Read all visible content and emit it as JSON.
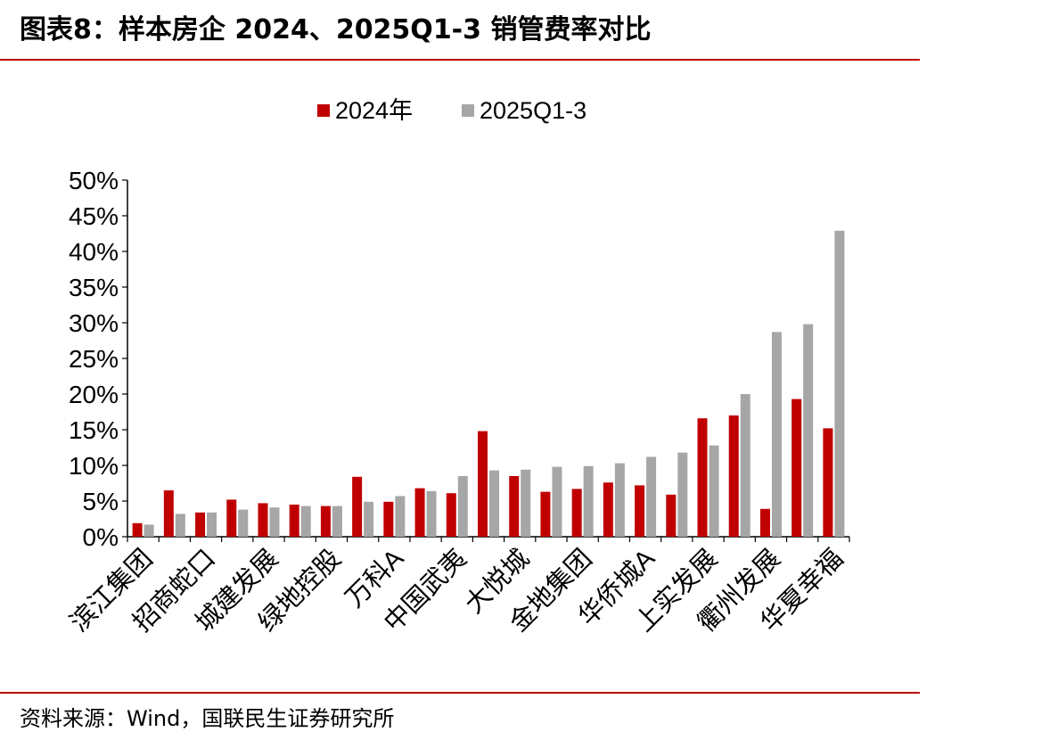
{
  "header": {
    "title": "图表8：样本房企 2024、2025Q1-3 销管费率对比"
  },
  "footer": {
    "source": "资料来源：Wind，国联民生证券研究所"
  },
  "colors": {
    "series_2024": "#c00000",
    "series_2025": "#a6a6a6",
    "rule": "#c00000"
  },
  "chart_data": {
    "type": "bar",
    "categories": [
      "滨江集团",
      "招商蛇口",
      "城建发展",
      "绿地控股",
      "万科A",
      "中国武夷",
      "大悦城",
      "金地集团",
      "华侨城A",
      "上实发展",
      "衢州发展",
      "华夏幸福"
    ],
    "category_labels": [
      "滨江集团",
      "招商蛇口",
      "城建发展",
      "绿地控股",
      "万科A",
      "中国武夷",
      "大悦城",
      "金地集团",
      "华侨城A",
      "上实发展",
      "衢州发展",
      "华夏幸福"
    ],
    "bar_groups": [
      [
        1.9,
        6.5,
        1.7,
        3.2
      ],
      [
        3.4,
        5.2,
        3.4,
        3.8
      ],
      [
        4.7,
        4.5,
        4.1,
        4.3
      ],
      [
        4.3,
        8.4,
        4.3,
        4.9
      ],
      [
        4.9,
        6.8,
        5.7,
        6.4
      ],
      [
        6.1,
        14.8,
        8.5,
        9.3
      ],
      [
        8.5,
        6.3,
        9.4,
        9.8
      ],
      [
        6.7,
        7.6,
        9.9,
        10.3
      ],
      [
        7.2,
        5.9,
        11.2,
        11.8
      ],
      [
        16.6,
        17.0,
        12.8,
        20.0
      ],
      [
        3.9,
        19.3,
        28.7,
        29.8
      ],
      [
        15.2,
        null,
        42.9,
        null
      ]
    ],
    "series": [
      {
        "name": "2024年",
        "values": [
          1.9,
          6.5,
          3.4,
          5.2,
          4.7,
          4.5,
          4.3,
          8.4,
          4.9,
          6.8,
          6.1,
          14.8
        ]
      },
      {
        "name": "2025Q1-3",
        "values": [
          1.7,
          3.2,
          3.4,
          3.8,
          4.1,
          4.3,
          4.3,
          4.9,
          5.7,
          6.4,
          8.5,
          9.3
        ]
      }
    ],
    "all_values_2024": [
      1.9,
      6.5,
      3.4,
      5.2,
      4.7,
      4.5,
      4.3,
      8.4,
      4.9,
      6.8,
      6.1,
      14.8,
      8.5,
      6.3,
      6.7,
      7.6,
      7.2,
      5.9,
      16.6,
      17.0,
      3.9,
      19.3,
      15.2
    ],
    "all_values_2025": [
      1.7,
      3.2,
      3.4,
      3.8,
      4.1,
      4.3,
      4.3,
      4.9,
      5.7,
      6.4,
      8.5,
      9.3,
      9.4,
      9.8,
      9.9,
      10.3,
      11.2,
      11.8,
      12.8,
      20.0,
      28.7,
      29.8,
      42.9
    ],
    "x_labels_shown": [
      "滨江集团",
      "招商蛇口",
      "城建发展",
      "绿地控股",
      "万科A",
      "中国武夷",
      "大悦城",
      "金地集团",
      "华侨城A",
      "上实发展",
      "衢州发展",
      "华夏幸福"
    ],
    "yticks": [
      "50%",
      "45%",
      "40%",
      "35%",
      "30%",
      "25%",
      "20%",
      "15%",
      "10%",
      "5%",
      "0%"
    ],
    "ylim": [
      0,
      50
    ],
    "legend": [
      "2024年",
      "2025Q1-3"
    ],
    "legend_position": "top",
    "grid": false,
    "unit": "%"
  }
}
